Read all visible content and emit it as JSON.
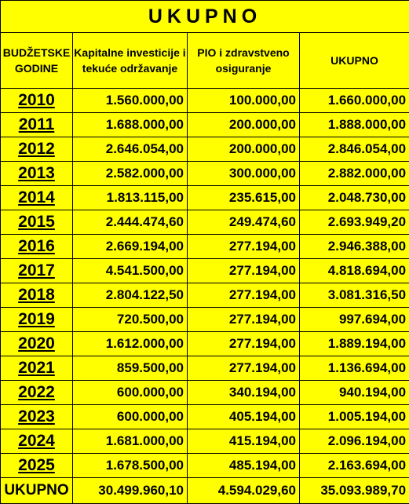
{
  "title": "UKUPNO",
  "headers": {
    "col1": "BUDŽETSKE GODINE",
    "col2": "Kapitalne investicije i tekuće održavanje",
    "col3": "PIO i zdravstveno osiguranje",
    "col4": "UKUPNO"
  },
  "rows": [
    {
      "year": "2010",
      "kapitalne": "1.560.000,00",
      "pio": "100.000,00",
      "ukupno": "1.660.000,00"
    },
    {
      "year": "2011",
      "kapitalne": "1.688.000,00",
      "pio": "200.000,00",
      "ukupno": "1.888.000,00"
    },
    {
      "year": "2012",
      "kapitalne": "2.646.054,00",
      "pio": "200.000,00",
      "ukupno": "2.846.054,00"
    },
    {
      "year": "2013",
      "kapitalne": "2.582.000,00",
      "pio": "300.000,00",
      "ukupno": "2.882.000,00"
    },
    {
      "year": "2014",
      "kapitalne": "1.813.115,00",
      "pio": "235.615,00",
      "ukupno": "2.048.730,00"
    },
    {
      "year": "2015",
      "kapitalne": "2.444.474,60",
      "pio": "249.474,60",
      "ukupno": "2.693.949,20"
    },
    {
      "year": "2016",
      "kapitalne": "2.669.194,00",
      "pio": "277.194,00",
      "ukupno": "2.946.388,00"
    },
    {
      "year": "2017",
      "kapitalne": "4.541.500,00",
      "pio": "277.194,00",
      "ukupno": "4.818.694,00"
    },
    {
      "year": "2018",
      "kapitalne": "2.804.122,50",
      "pio": "277.194,00",
      "ukupno": "3.081.316,50"
    },
    {
      "year": "2019",
      "kapitalne": "720.500,00",
      "pio": "277.194,00",
      "ukupno": "997.694,00"
    },
    {
      "year": "2020",
      "kapitalne": "1.612.000,00",
      "pio": "277.194,00",
      "ukupno": "1.889.194,00"
    },
    {
      "year": "2021",
      "kapitalne": "859.500,00",
      "pio": "277.194,00",
      "ukupno": "1.136.694,00"
    },
    {
      "year": "2022",
      "kapitalne": "600.000,00",
      "pio": "340.194,00",
      "ukupno": "940.194,00"
    },
    {
      "year": "2023",
      "kapitalne": "600.000,00",
      "pio": "405.194,00",
      "ukupno": "1.005.194,00"
    },
    {
      "year": "2024",
      "kapitalne": "1.681.000,00",
      "pio": "415.194,00",
      "ukupno": "2.096.194,00"
    },
    {
      "year": "2025",
      "kapitalne": "1.678.500,00",
      "pio": "485.194,00",
      "ukupno": "2.163.694,00"
    }
  ],
  "totals": {
    "label": "UKUPNO",
    "kapitalne": "30.499.960,10",
    "pio": "4.594.029,60",
    "ukupno": "35.093.989,70"
  },
  "colors": {
    "background": "#ffff00",
    "text": "#000000"
  }
}
